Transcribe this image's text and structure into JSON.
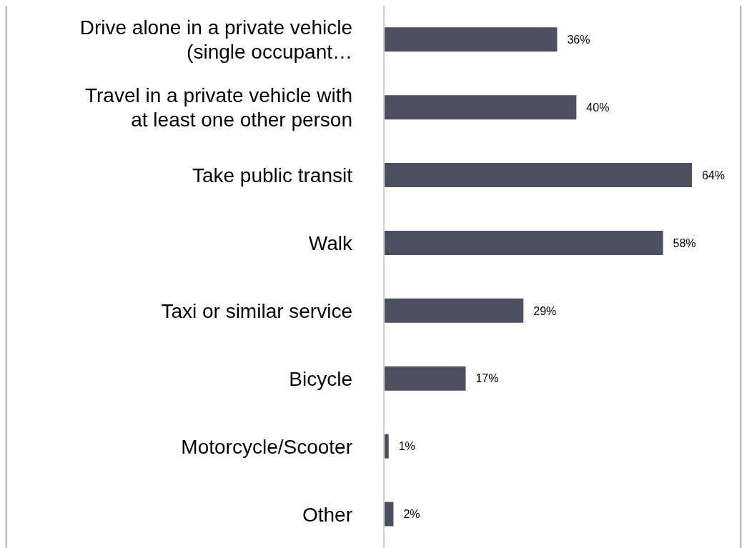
{
  "chart_data": {
    "type": "bar",
    "orientation": "horizontal",
    "categories": [
      "Drive alone in a private vehicle (single occupant…",
      "Travel in a private vehicle with at least one other person",
      "Take public transit",
      "Walk",
      "Taxi or similar service",
      "Bicycle",
      "Motorcycle/Scooter",
      "Other"
    ],
    "values": [
      36,
      40,
      64,
      58,
      29,
      17,
      1,
      2
    ],
    "value_labels": [
      "36%",
      "40%",
      "64%",
      "58%",
      "29%",
      "17%",
      "1%",
      "2%"
    ],
    "color": "#4d5060"
  }
}
